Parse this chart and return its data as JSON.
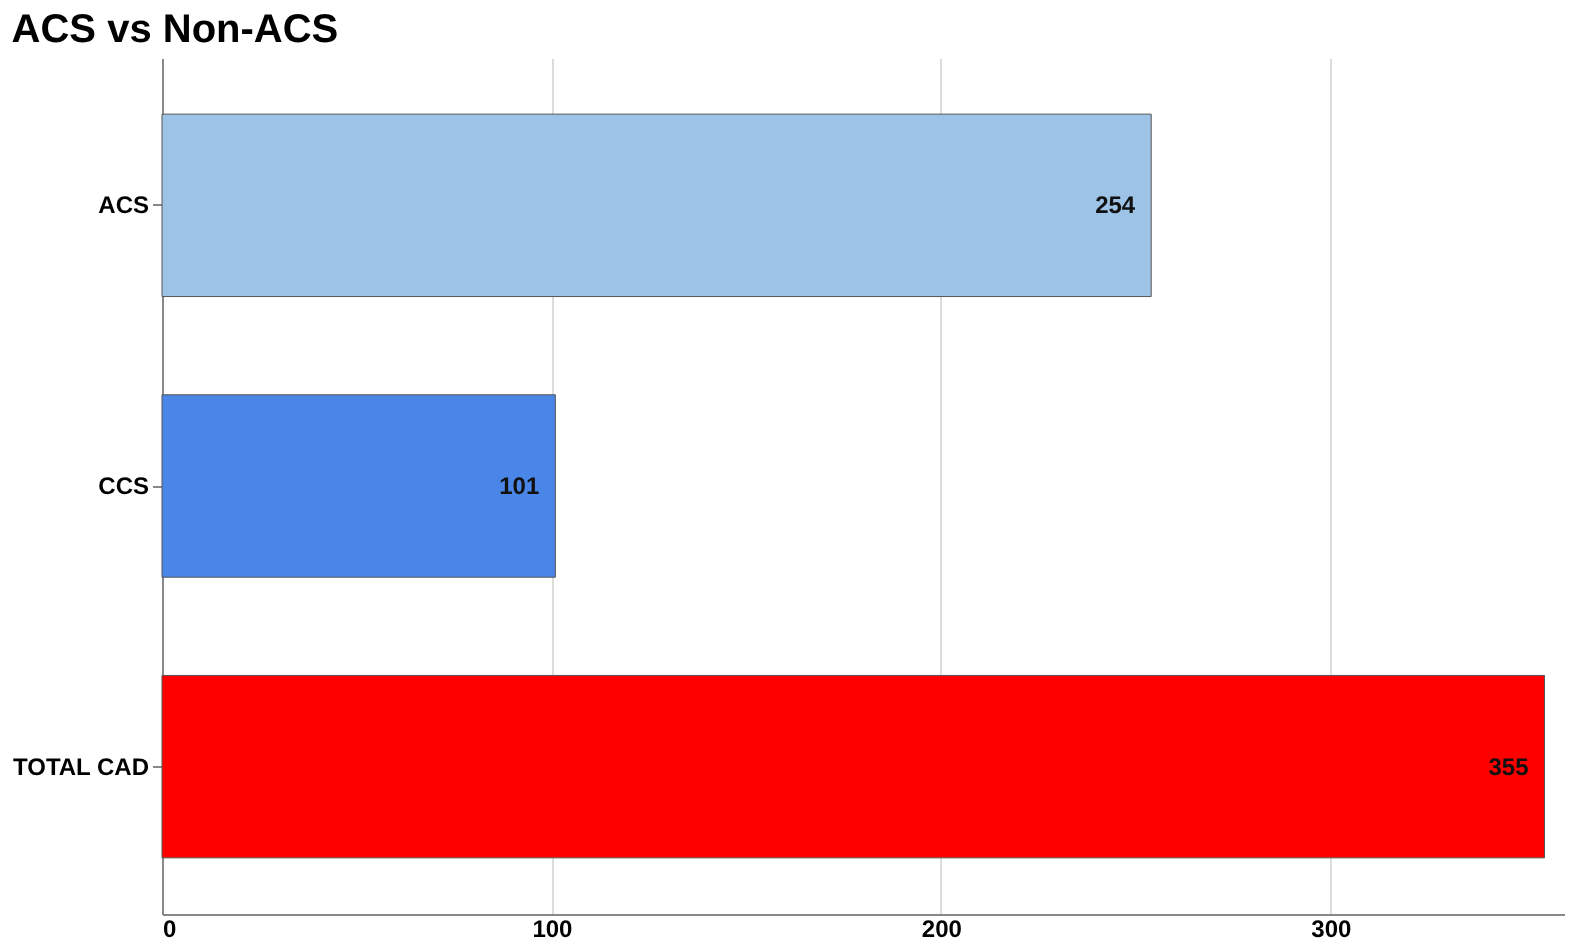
{
  "chart_data": {
    "type": "bar",
    "orientation": "horizontal",
    "title": "ACS vs Non-ACS",
    "categories": [
      "ACS",
      "CCS",
      "TOTAL CAD"
    ],
    "values": [
      254,
      101,
      355
    ],
    "colors": [
      "#9dc3e6",
      "#4a86e8",
      "#ff0000"
    ],
    "xlim": [
      0,
      360
    ],
    "xticks": [
      0,
      100,
      200,
      300
    ],
    "grid": "x",
    "data_labels": true
  }
}
